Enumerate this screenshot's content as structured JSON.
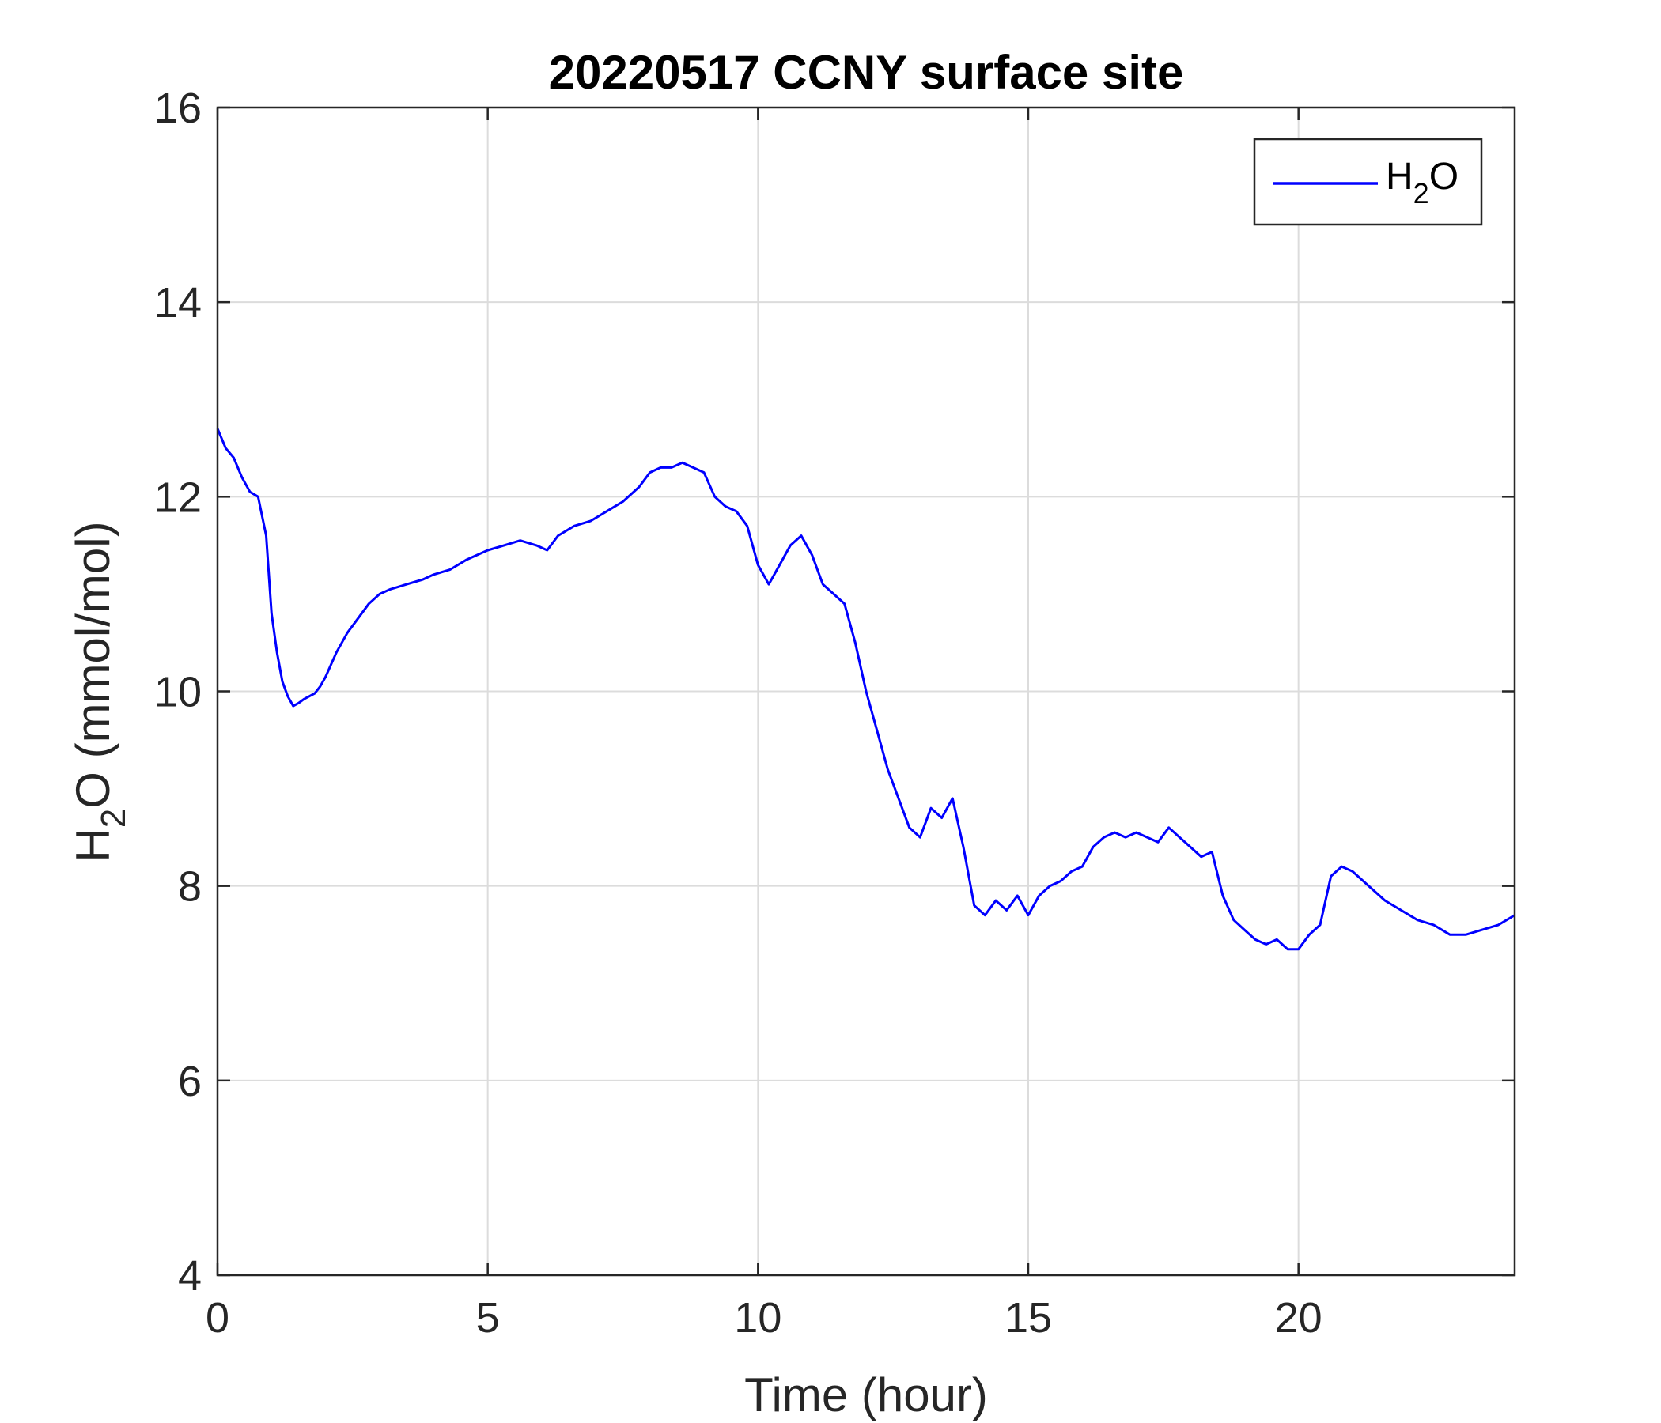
{
  "chart_data": {
    "type": "line",
    "title": "20220517 CCNY surface site",
    "xlabel": "Time (hour)",
    "ylabel": {
      "main": "H",
      "sub": "2",
      "rest": "O (mmol/mol)"
    },
    "xlim": [
      0,
      24
    ],
    "ylim": [
      4,
      16
    ],
    "xticks": [
      0,
      5,
      10,
      15,
      20
    ],
    "yticks": [
      4,
      6,
      8,
      10,
      12,
      14,
      16
    ],
    "grid": true,
    "legend_position": "top-right",
    "series": [
      {
        "name": {
          "main": "H",
          "sub": "2",
          "rest": "O"
        },
        "color": "#0000ff",
        "x": [
          0,
          0.15,
          0.3,
          0.45,
          0.6,
          0.75,
          0.9,
          1.0,
          1.1,
          1.2,
          1.3,
          1.4,
          1.5,
          1.6,
          1.7,
          1.8,
          1.9,
          2.0,
          2.2,
          2.4,
          2.6,
          2.8,
          3.0,
          3.2,
          3.5,
          3.8,
          4.0,
          4.3,
          4.6,
          5.0,
          5.3,
          5.6,
          5.9,
          6.1,
          6.3,
          6.6,
          6.9,
          7.2,
          7.5,
          7.8,
          8.0,
          8.2,
          8.4,
          8.6,
          8.8,
          9.0,
          9.2,
          9.4,
          9.6,
          9.8,
          10.0,
          10.2,
          10.4,
          10.6,
          10.8,
          11.0,
          11.2,
          11.4,
          11.6,
          11.8,
          12.0,
          12.2,
          12.4,
          12.6,
          12.8,
          13.0,
          13.2,
          13.4,
          13.6,
          13.8,
          14.0,
          14.2,
          14.4,
          14.6,
          14.8,
          15.0,
          15.2,
          15.4,
          15.6,
          15.8,
          16.0,
          16.2,
          16.4,
          16.6,
          16.8,
          17.0,
          17.2,
          17.4,
          17.6,
          17.8,
          18.0,
          18.2,
          18.4,
          18.6,
          18.8,
          19.0,
          19.2,
          19.4,
          19.6,
          19.8,
          20.0,
          20.2,
          20.4,
          20.6,
          20.8,
          21.0,
          21.3,
          21.6,
          21.9,
          22.2,
          22.5,
          22.8,
          23.1,
          23.4,
          23.7,
          24.0
        ],
        "y": [
          12.7,
          12.5,
          12.4,
          12.2,
          12.05,
          12.0,
          11.6,
          10.8,
          10.4,
          10.1,
          9.95,
          9.85,
          9.88,
          9.92,
          9.95,
          9.98,
          10.05,
          10.15,
          10.4,
          10.6,
          10.75,
          10.9,
          11.0,
          11.05,
          11.1,
          11.15,
          11.2,
          11.25,
          11.35,
          11.45,
          11.5,
          11.55,
          11.5,
          11.45,
          11.6,
          11.7,
          11.75,
          11.85,
          11.95,
          12.1,
          12.25,
          12.3,
          12.3,
          12.35,
          12.3,
          12.25,
          12.0,
          11.9,
          11.85,
          11.7,
          11.3,
          11.1,
          11.3,
          11.5,
          11.6,
          11.4,
          11.1,
          11.0,
          10.9,
          10.5,
          10.0,
          9.6,
          9.2,
          8.9,
          8.6,
          8.5,
          8.8,
          8.7,
          8.9,
          8.4,
          7.8,
          7.7,
          7.85,
          7.75,
          7.9,
          7.7,
          7.9,
          8.0,
          8.05,
          8.15,
          8.2,
          8.4,
          8.5,
          8.55,
          8.5,
          8.55,
          8.5,
          8.45,
          8.6,
          8.5,
          8.4,
          8.3,
          8.35,
          7.9,
          7.65,
          7.55,
          7.45,
          7.4,
          7.45,
          7.35,
          7.35,
          7.5,
          7.6,
          8.1,
          8.2,
          8.15,
          8.0,
          7.85,
          7.75,
          7.65,
          7.6,
          7.5,
          7.5,
          7.55,
          7.6,
          7.7
        ]
      }
    ]
  }
}
